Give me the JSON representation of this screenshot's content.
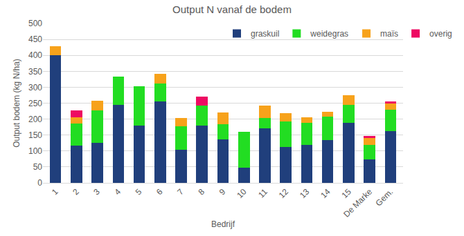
{
  "chart_data": {
    "type": "bar",
    "title": "Output N vanaf de bodem",
    "x_label": "Bedrijf",
    "y_label": "Output bodem (kg N/ha)",
    "categories": [
      "1",
      "2",
      "3",
      "4",
      "5",
      "6",
      "7",
      "8",
      "9",
      "10",
      "11",
      "12",
      "13",
      "14",
      "15",
      "De Marke",
      "Gem."
    ],
    "series": [
      {
        "name": "graskuil",
        "color": "#203f7c",
        "values": [
          400,
          117,
          125,
          245,
          180,
          255,
          103,
          180,
          137,
          48,
          170,
          113,
          118,
          135,
          188,
          73,
          163
        ]
      },
      {
        "name": "weidegras",
        "color": "#22dd22",
        "values": [
          0,
          70,
          102,
          88,
          123,
          57,
          75,
          62,
          48,
          113,
          33,
          80,
          70,
          73,
          57,
          45,
          67
        ]
      },
      {
        "name": "maïs",
        "color": "#f7a21b",
        "values": [
          28,
          18,
          30,
          0,
          0,
          30,
          25,
          0,
          35,
          0,
          40,
          25,
          18,
          14,
          30,
          22,
          20
        ]
      },
      {
        "name": "overig",
        "color": "#ee0a62",
        "values": [
          0,
          23,
          0,
          0,
          0,
          0,
          0,
          28,
          0,
          0,
          0,
          0,
          0,
          0,
          0,
          8,
          5
        ]
      }
    ],
    "stacked": true,
    "ylim": [
      0,
      500
    ],
    "yticks": [
      0,
      50,
      100,
      150,
      200,
      250,
      300,
      350,
      400,
      450,
      500
    ],
    "grid": true,
    "legend": "top"
  }
}
